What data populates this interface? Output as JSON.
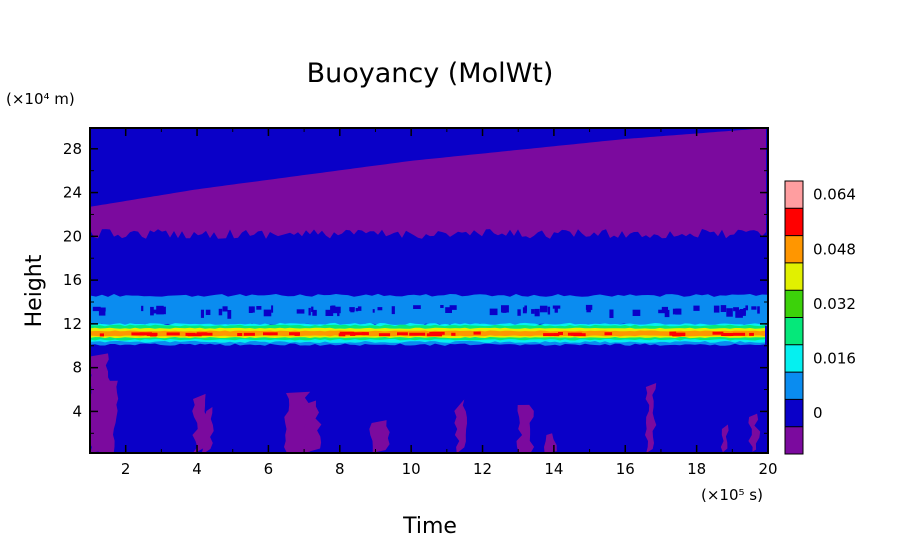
{
  "chart_data": {
    "type": "heatmap",
    "title": "Buoyancy (MolWt)",
    "xlabel": "Time",
    "ylabel": "Height",
    "x_unit": "(×10⁵ s)",
    "y_unit": "(×10⁴ m)",
    "xlim": [
      1,
      20
    ],
    "ylim": [
      0.2,
      29.9
    ],
    "x_ticks": [
      "2",
      "4",
      "6",
      "8",
      "10",
      "12",
      "14",
      "16",
      "18",
      "20"
    ],
    "y_ticks": [
      "4",
      "8",
      "12",
      "16",
      "20",
      "24",
      "28"
    ],
    "colorbar": {
      "levels": [
        -0.008,
        0,
        0.008,
        0.016,
        0.024,
        0.032,
        0.04,
        0.048,
        0.056,
        0.064,
        0.072
      ],
      "tick_labels": [
        "0",
        "0.016",
        "0.032",
        "0.048",
        "0.064"
      ],
      "colors": [
        "#7b0a9e",
        "#0a00c8",
        "#0a8cf0",
        "#05f0f0",
        "#05e87a",
        "#3cd20a",
        "#e1f000",
        "#ff9600",
        "#ff0000",
        "#ff9ea0"
      ]
    },
    "bands": [
      {
        "height_range": [
          0.2,
          10.4
        ],
        "level": "0 to 0.008",
        "note": "with sporadic negative patches"
      },
      {
        "height_range": [
          10.0,
          10.6
        ],
        "level": "0.008 to 0.016"
      },
      {
        "height_range": [
          10.3,
          12.0
        ],
        "level": "0.024 to 0.056",
        "note": "peak near 11 (x10^4 m)"
      },
      {
        "height_range": [
          12.0,
          14.5
        ],
        "level": "0.008 to 0.016"
      },
      {
        "height_range": [
          14.5,
          20.5
        ],
        "level": "0 to 0.008"
      },
      {
        "height_range": [
          20.5,
          29.9
        ],
        "level": "below 0",
        "note": "upper boundary rising with time to about 29.9"
      }
    ],
    "upper_boundary_height": [
      {
        "x": 1,
        "y": 22.7
      },
      {
        "x": 4,
        "y": 24.3
      },
      {
        "x": 10,
        "y": 26.9
      },
      {
        "x": 16,
        "y": 28.9
      },
      {
        "x": 20,
        "y": 29.9
      }
    ]
  }
}
